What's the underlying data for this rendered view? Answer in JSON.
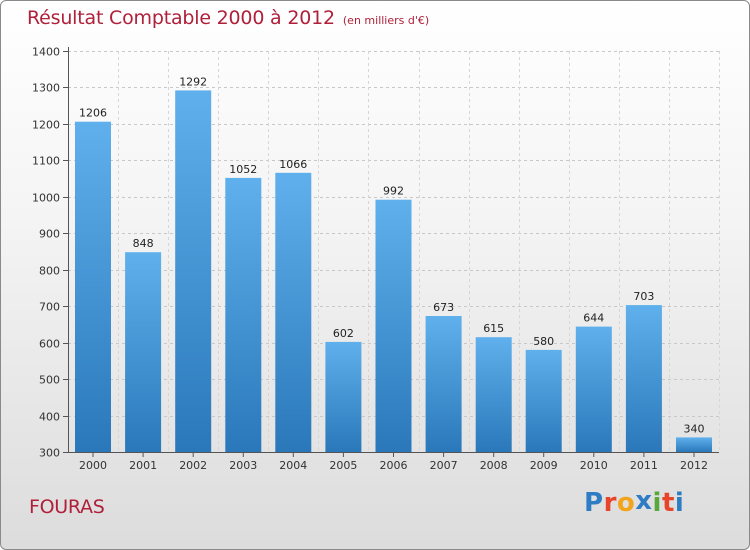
{
  "header": {
    "title": "Résultat Comptable 2000 à 2012",
    "unit": "(en milliers d'€)"
  },
  "footer": {
    "commune": "FOURAS",
    "logo_letters": [
      "P",
      "r",
      "o",
      "x",
      "i",
      "t",
      "i"
    ],
    "logo_colors": [
      "#2e7cc4",
      "#e8442a",
      "#f2a51c",
      "#2e7cc4",
      "#58a83a",
      "#e8442a",
      "#2e7cc4"
    ]
  },
  "colors": {
    "bar_top": "#5fb0ec",
    "bar_bottom": "#2a78ba",
    "title": "#b0203a"
  },
  "chart_data": {
    "type": "bar",
    "title": "Résultat Comptable 2000 à 2012",
    "xlabel": "",
    "ylabel": "(en milliers d'€)",
    "categories": [
      "2000",
      "2001",
      "2002",
      "2003",
      "2004",
      "2005",
      "2006",
      "2007",
      "2008",
      "2009",
      "2010",
      "2011",
      "2012"
    ],
    "values": [
      1206,
      848,
      1292,
      1052,
      1066,
      602,
      992,
      673,
      615,
      580,
      644,
      703,
      340
    ],
    "value_labels": [
      "1206",
      "848",
      "1292",
      "1052",
      "1066",
      "602",
      "992",
      "673",
      "615",
      "580",
      "644",
      "703",
      "340"
    ],
    "ylim": [
      300,
      1400
    ],
    "yticks": [
      300,
      400,
      500,
      600,
      700,
      800,
      900,
      1000,
      1100,
      1200,
      1300,
      1400
    ],
    "ytick_labels": [
      "300",
      "400",
      "500",
      "600",
      "700",
      "800",
      "900",
      "1000",
      "1100",
      "1200",
      "1300",
      "1400"
    ],
    "grid": true
  }
}
